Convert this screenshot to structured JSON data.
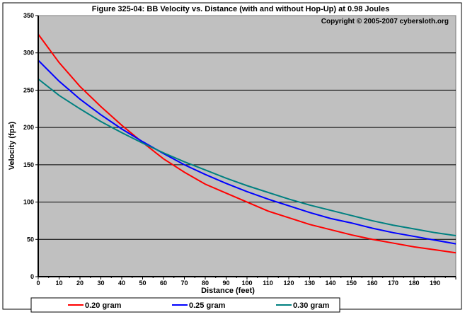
{
  "chart_data": {
    "type": "line",
    "title": "Figure 325-04:  BB Velocity vs. Distance (with and without Hop-Up) at 0.98 Joules",
    "annotation": "Copyright © 2005-2007 cybersloth.org",
    "xlabel": "Distance (feet)",
    "ylabel": "Velocity (fps)",
    "xlim": [
      0,
      200
    ],
    "ylim": [
      0,
      350
    ],
    "xticks": [
      0,
      10,
      20,
      30,
      40,
      50,
      60,
      70,
      80,
      90,
      100,
      110,
      120,
      130,
      140,
      150,
      160,
      170,
      180,
      190
    ],
    "yticks": [
      0,
      50,
      100,
      150,
      200,
      250,
      300,
      350
    ],
    "grid": "horizontal",
    "legend_placement": "bottom",
    "x": [
      0,
      10,
      20,
      30,
      40,
      50,
      60,
      70,
      80,
      90,
      100,
      110,
      120,
      130,
      140,
      150,
      160,
      170,
      180,
      190,
      200
    ],
    "series": [
      {
        "name": "0.20 gram",
        "color": "#ff0000",
        "values": [
          325,
          287,
          255,
          228,
          203,
          180,
          158,
          140,
          124,
          112,
          100,
          88,
          79,
          70,
          63,
          56,
          50,
          45,
          40,
          36,
          32
        ]
      },
      {
        "name": "0.25 gram",
        "color": "#0000ff",
        "values": [
          290,
          262,
          238,
          217,
          198,
          181,
          165,
          150,
          137,
          125,
          114,
          104,
          95,
          86,
          78,
          72,
          65,
          59,
          54,
          49,
          44
        ]
      },
      {
        "name": "0.30 gram",
        "color": "#008080",
        "values": [
          265,
          243,
          225,
          208,
          193,
          179,
          166,
          154,
          143,
          132,
          122,
          113,
          104,
          96,
          89,
          82,
          75,
          69,
          64,
          59,
          55
        ]
      }
    ]
  }
}
